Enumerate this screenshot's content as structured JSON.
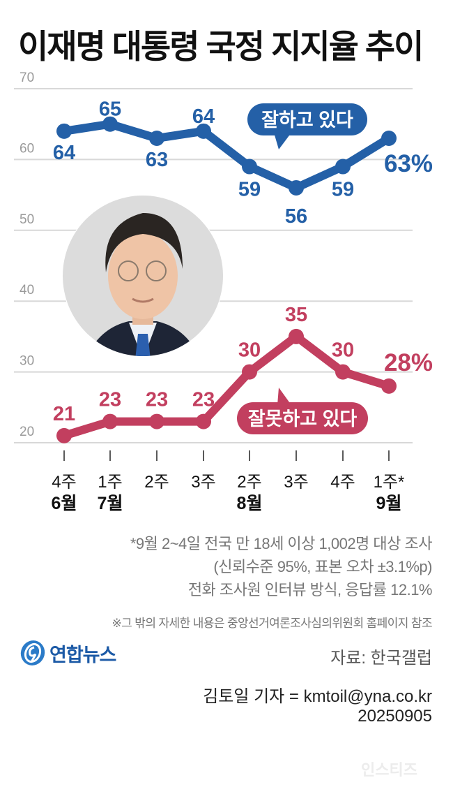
{
  "header": {
    "title": "이재명 대통령 국정 지지율 추이"
  },
  "chart_data": {
    "type": "line",
    "title": "이재명 대통령 국정 지지율 추이",
    "xlabel": "",
    "ylabel": "",
    "ylim": [
      20,
      70
    ],
    "yticks": [
      "70",
      "60",
      "50",
      "40",
      "30",
      "20"
    ],
    "grid": true,
    "categories": [
      "6월 4주",
      "7월 1주",
      "7월 2주",
      "7월 3주",
      "8월 2주",
      "8월 3주",
      "8월 4주",
      "9월 1주*"
    ],
    "week_labels": [
      "4주",
      "1주",
      "2주",
      "3주",
      "2주",
      "3주",
      "4주",
      "1주*"
    ],
    "month_labels": [
      "6월",
      "7월",
      "",
      "",
      "8월",
      "",
      "",
      "9월"
    ],
    "series": [
      {
        "name": "잘하고 있다",
        "color": "#2460a7",
        "values": [
          64,
          65,
          63,
          64,
          59,
          56,
          59,
          63
        ],
        "labels": [
          "64",
          "65",
          "63",
          "64",
          "59",
          "56",
          "59",
          "63%"
        ]
      },
      {
        "name": "잘못하고 있다",
        "color": "#c23f5f",
        "values": [
          21,
          23,
          23,
          23,
          30,
          35,
          30,
          28
        ],
        "labels": [
          "21",
          "23",
          "23",
          "23",
          "30",
          "35",
          "30",
          "28%"
        ]
      }
    ]
  },
  "notes": {
    "line1": "*9월 2~4일 전국 만 18세 이상 1,002명 대상 조사",
    "line2": "(신뢰수준 95%, 표본 오차 ±3.1%p)",
    "line3": "전화 조사원 인터뷰 방식, 응답률 12.1%",
    "reference": "※그 밖의 자세한 내용은 중앙선거여론조사심의위원회 홈페이지 참조"
  },
  "footer": {
    "logo_text": "연합뉴스",
    "source": "자료: 한국갤럽",
    "reporter": "김토일 기자 = kmtoil@yna.co.kr",
    "date": "20250905",
    "watermark": "인스티즈"
  }
}
